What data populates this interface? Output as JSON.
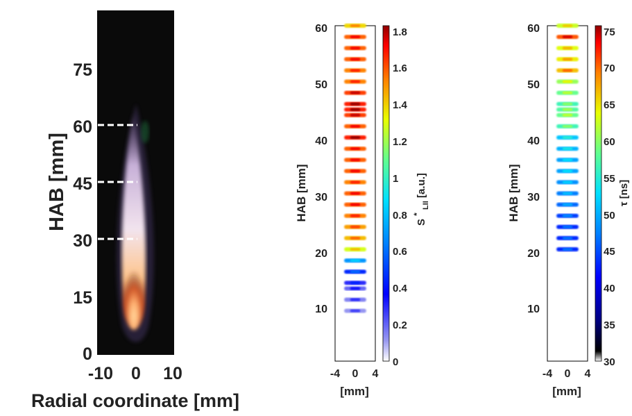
{
  "figure": {
    "panel_a": {
      "ylabel": "HAB [mm]",
      "xlabel": "Radial coordinate [mm]",
      "y_ticks": [
        "0",
        "15",
        "30",
        "45",
        "60",
        "75"
      ],
      "x_ticks": [
        "-10",
        "0",
        "10"
      ]
    },
    "panel_b": {
      "ylabel": "HAB [mm]",
      "xlabel": "[mm]",
      "colorbar_label_main": "S",
      "colorbar_label_sup": "*",
      "colorbar_label_sub": "LII",
      "colorbar_label_unit": " [a.u.]",
      "y_ticks": [
        "10",
        "20",
        "30",
        "40",
        "50",
        "60"
      ],
      "x_ticks": [
        "-4",
        "0",
        "4"
      ],
      "cb_ticks": [
        "0",
        "0.2",
        "0.4",
        "0.6",
        "0.8",
        "1",
        "1.2",
        "1.4",
        "1.6",
        "1.8"
      ]
    },
    "panel_c": {
      "ylabel": "HAB [mm]",
      "xlabel": "[mm]",
      "colorbar_label": "τ [ns]",
      "y_ticks": [
        "10",
        "20",
        "30",
        "40",
        "50",
        "60"
      ],
      "x_ticks": [
        "-4",
        "0",
        "4"
      ],
      "cb_ticks": [
        "30",
        "35",
        "40",
        "45",
        "50",
        "55",
        "60",
        "65",
        "70",
        "75"
      ]
    }
  },
  "chart_data": [
    {
      "type": "heatmap",
      "title": "",
      "xlabel": "Radial coordinate [mm]",
      "ylabel": "HAB [mm]",
      "xlim": [
        -10,
        10
      ],
      "ylim": [
        0,
        90
      ],
      "y_ticks": [
        0,
        15,
        30,
        45,
        60,
        75
      ],
      "x_ticks": [
        -10,
        0,
        10
      ],
      "marker_lines_hab_mm": [
        30,
        45,
        60
      ],
      "description_values": {
        "flame_luminous_hab_range_mm": [
          5,
          65
        ]
      }
    },
    {
      "type": "heatmap",
      "title": "",
      "xlabel": "[mm]",
      "ylabel": "HAB [mm]",
      "colorbar": "S*_LII [a.u.]",
      "xlim": [
        -4,
        4
      ],
      "ylim": [
        0,
        60
      ],
      "clim": [
        0,
        1.85
      ],
      "rows_hab_mm": [
        9,
        11,
        13,
        14,
        16,
        18,
        20,
        22,
        24,
        26,
        28,
        30,
        32,
        34,
        36,
        38,
        40,
        42,
        44,
        45,
        46,
        48,
        50,
        52,
        54,
        56,
        58,
        60
      ],
      "rows_value": [
        0.12,
        0.15,
        0.2,
        0.3,
        0.45,
        0.7,
        1.3,
        1.45,
        1.5,
        1.55,
        1.6,
        1.6,
        1.55,
        1.6,
        1.6,
        1.6,
        1.7,
        1.6,
        1.65,
        1.7,
        1.7,
        1.65,
        1.55,
        1.55,
        1.6,
        1.6,
        1.6,
        1.4
      ]
    },
    {
      "type": "heatmap",
      "title": "",
      "xlabel": "[mm]",
      "ylabel": "HAB [mm]",
      "colorbar": "τ [ns]",
      "xlim": [
        -4,
        4
      ],
      "ylim": [
        0,
        60
      ],
      "clim": [
        30,
        75
      ],
      "rows_hab_mm": [
        20,
        22,
        24,
        26,
        28,
        30,
        32,
        34,
        36,
        38,
        40,
        42,
        44,
        45,
        46,
        48,
        50,
        52,
        54,
        56,
        58,
        60
      ],
      "rows_value": [
        43,
        43,
        43,
        44,
        46,
        47,
        48,
        49,
        49,
        50,
        51,
        56,
        58,
        57,
        56,
        58,
        60,
        66,
        64,
        63,
        70,
        62
      ]
    }
  ]
}
